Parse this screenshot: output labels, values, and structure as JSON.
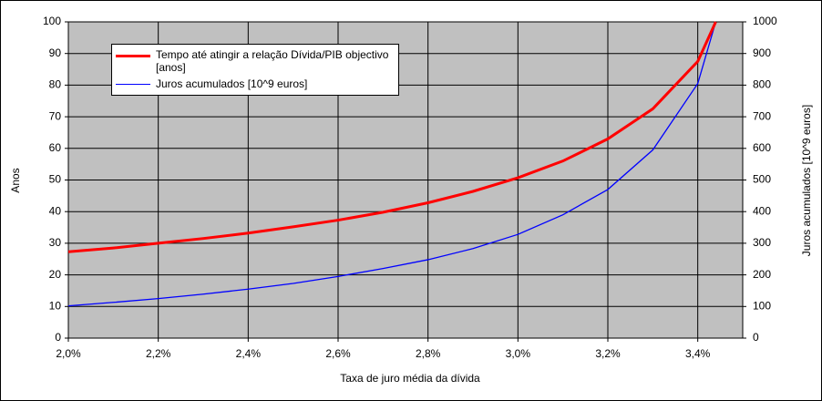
{
  "chart_data": {
    "type": "line",
    "x": [
      2.0,
      2.1,
      2.2,
      2.3,
      2.4,
      2.5,
      2.6,
      2.7,
      2.8,
      2.9,
      3.0,
      3.1,
      3.2,
      3.3,
      3.4,
      3.44
    ],
    "series": [
      {
        "name": "Tempo até atingir a relação Dívida/PIB objectivo [anos]",
        "color": "#ff0000",
        "values": [
          27.3,
          28.5,
          30,
          31.5,
          33.2,
          35.2,
          37.3,
          39.8,
          42.8,
          46.4,
          50.7,
          56,
          63,
          72.5,
          87.5,
          100
        ]
      },
      {
        "name": "Juros acumulados [10^9 euros]",
        "color": "#0000ff",
        "axis": "y2",
        "values": [
          102,
          113,
          125,
          139,
          155,
          173,
          195,
          220,
          248,
          283,
          328,
          390,
          470,
          595,
          805,
          1000
        ]
      }
    ],
    "xlabel": "Taxa de juro média da dívida",
    "ylabel": "Anos",
    "y2label": "Juros acumulados [10^9 euros]",
    "xlim": [
      2.0,
      3.5
    ],
    "xticks": [
      {
        "value": 2.0,
        "label": "2,0%"
      },
      {
        "value": 2.2,
        "label": "2,2%"
      },
      {
        "value": 2.4,
        "label": "2,4%"
      },
      {
        "value": 2.6,
        "label": "2,6%"
      },
      {
        "value": 2.8,
        "label": "2,8%"
      },
      {
        "value": 3.0,
        "label": "3,0%"
      },
      {
        "value": 3.2,
        "label": "3,2%"
      },
      {
        "value": 3.4,
        "label": "3,4%"
      }
    ],
    "ylim": [
      0,
      100
    ],
    "yticks": [
      0,
      10,
      20,
      30,
      40,
      50,
      60,
      70,
      80,
      90,
      100
    ],
    "y2lim": [
      0,
      1000
    ],
    "y2ticks": [
      0,
      100,
      200,
      300,
      400,
      500,
      600,
      700,
      800,
      900,
      1000
    ],
    "grid": true
  }
}
